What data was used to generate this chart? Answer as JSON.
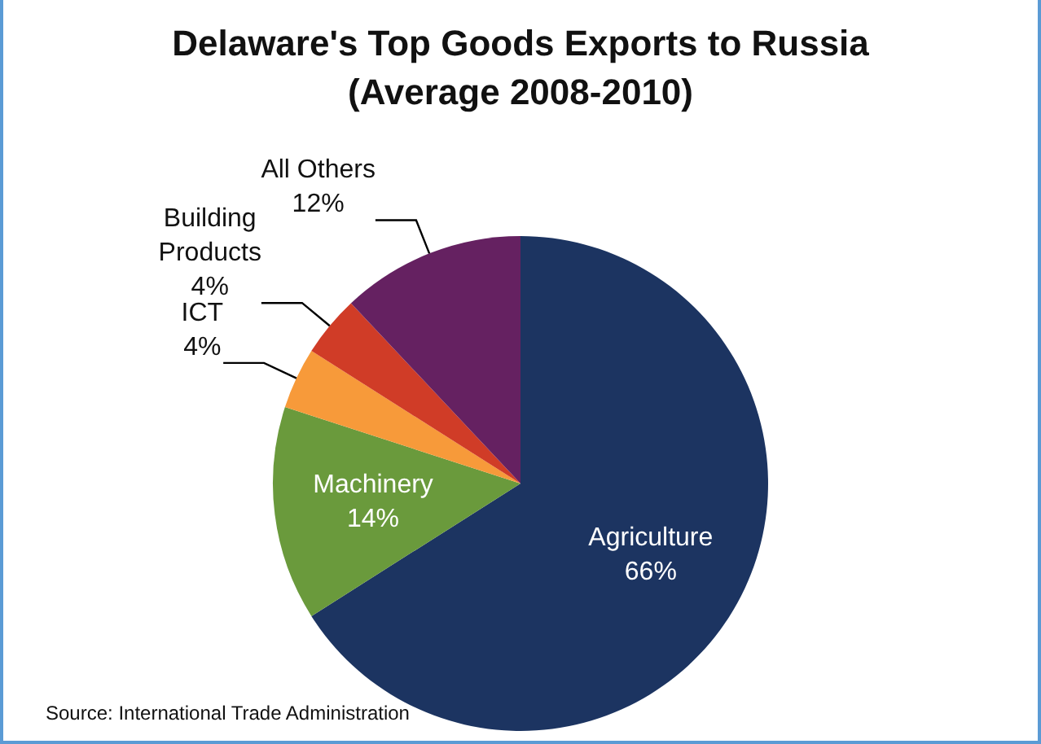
{
  "chart_data": {
    "type": "pie",
    "title": "Delaware's Top Goods Exports to Russia",
    "subtitle": "(Average 2008-2010)",
    "categories": [
      "Agriculture",
      "Machinery",
      "ICT",
      "Building Products",
      "All Others"
    ],
    "values": [
      66,
      14,
      4,
      4,
      12
    ],
    "colors": [
      "#1c3461",
      "#6a9a3c",
      "#f79a3a",
      "#d03c27",
      "#652161"
    ],
    "value_labels": [
      "66%",
      "14%",
      "4%",
      "4%",
      "12%"
    ],
    "annotations": [
      "Source: International Trade Administration"
    ]
  }
}
